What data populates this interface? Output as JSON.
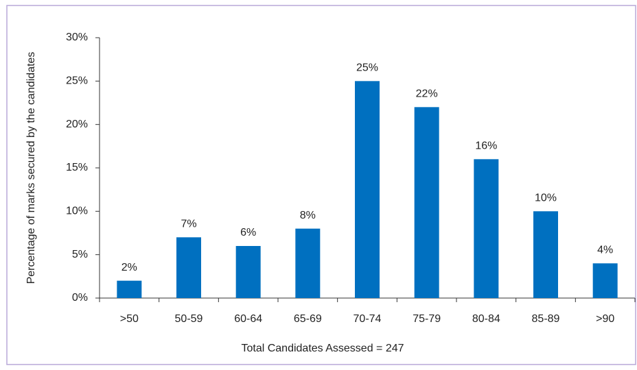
{
  "chart_data": {
    "type": "bar",
    "y_axis_label": "Percentage of marks secured by the candidates",
    "x_axis_label": "Total Candidates Assessed = 247",
    "categories": [
      ">50",
      "50-59",
      "60-64",
      "65-69",
      "70-74",
      "75-79",
      "80-84",
      "85-89",
      ">90"
    ],
    "values": [
      2,
      7,
      6,
      8,
      25,
      22,
      16,
      10,
      4
    ],
    "value_labels": [
      "2%",
      "7%",
      "6%",
      "8%",
      "25%",
      "22%",
      "16%",
      "10%",
      "4%"
    ],
    "color": "#0070c0",
    "ylim": [
      0,
      30
    ],
    "yticks": [
      {
        "value": 0,
        "label": "0%"
      },
      {
        "value": 5,
        "label": "5%"
      },
      {
        "value": 10,
        "label": "10%"
      },
      {
        "value": 15,
        "label": "15%"
      },
      {
        "value": 20,
        "label": "20%"
      },
      {
        "value": 25,
        "label": "25%"
      },
      {
        "value": 30,
        "label": "30%"
      }
    ],
    "grid": false
  }
}
